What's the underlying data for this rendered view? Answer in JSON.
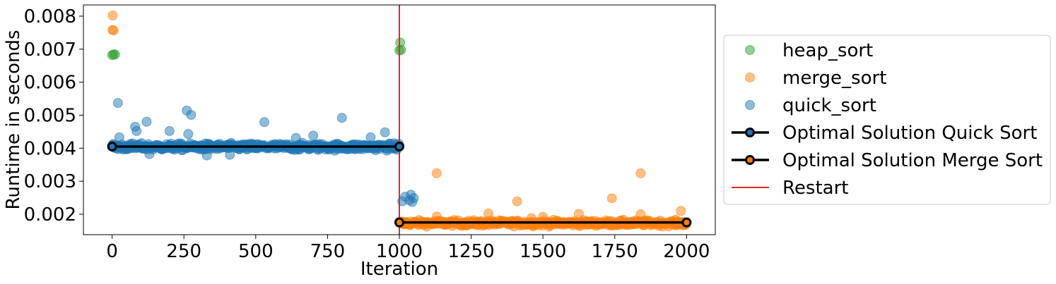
{
  "chart_data": {
    "type": "scatter",
    "title": "",
    "xlabel": "Iteration",
    "ylabel": "Runtime in seconds",
    "xlim": [
      -100,
      2100
    ],
    "ylim": [
      0.00138,
      0.00834
    ],
    "xticks": [
      0,
      250,
      500,
      750,
      1000,
      1250,
      1500,
      1750,
      2000
    ],
    "xtick_labels": [
      "0",
      "250",
      "500",
      "750",
      "1000",
      "1250",
      "1500",
      "1750",
      "2000"
    ],
    "yticks": [
      0.002,
      0.003,
      0.004,
      0.005,
      0.006,
      0.007,
      0.008
    ],
    "ytick_labels": [
      "0.002",
      "0.003",
      "0.004",
      "0.005",
      "0.006",
      "0.007",
      "0.008"
    ],
    "grid": false,
    "legend_position": "outside-right",
    "series": [
      {
        "name": "heap_sort",
        "kind": "scatter",
        "color": "#2ca02c",
        "points": [
          [
            0,
            0.00682
          ],
          [
            5,
            0.00684
          ],
          [
            10,
            0.00684
          ],
          [
            1000,
            0.00696
          ],
          [
            1003,
            0.0072
          ],
          [
            1006,
            0.00698
          ]
        ]
      },
      {
        "name": "merge_sort",
        "kind": "scatter",
        "color": "#ff7f0e",
        "points": [
          [
            2,
            0.00802
          ],
          [
            1,
            0.00758
          ],
          [
            5,
            0.00757
          ],
          [
            1130,
            0.00324
          ],
          [
            1410,
            0.00239
          ],
          [
            1740,
            0.00248
          ],
          [
            1840,
            0.00324
          ],
          [
            1310,
            0.00202
          ],
          [
            1625,
            0.00201
          ],
          [
            1980,
            0.0021
          ],
          [
            1840,
            0.002
          ],
          [
            1130,
            0.00193
          ],
          [
            1500,
            0.00192
          ],
          [
            1460,
            0.00188
          ]
        ],
        "band": {
          "x_start": 1000,
          "x_end": 2000,
          "y_center": 0.00173,
          "y_spread": 0.00014,
          "count": 420
        }
      },
      {
        "name": "quick_sort",
        "kind": "scatter",
        "color": "#1f77b4",
        "points": [
          [
            20,
            0.00537
          ],
          [
            120,
            0.0048
          ],
          [
            200,
            0.00452
          ],
          [
            260,
            0.00514
          ],
          [
            275,
            0.00501
          ],
          [
            530,
            0.00479
          ],
          [
            800,
            0.00492
          ],
          [
            950,
            0.00448
          ],
          [
            80,
            0.00465
          ],
          [
            85,
            0.00452
          ],
          [
            265,
            0.00443
          ],
          [
            640,
            0.00431
          ],
          [
            700,
            0.00438
          ],
          [
            900,
            0.00433
          ],
          [
            25,
            0.00433
          ],
          [
            330,
            0.00378
          ],
          [
            410,
            0.0038
          ],
          [
            130,
            0.00382
          ],
          [
            1020,
            0.00253
          ],
          [
            1040,
            0.00259
          ],
          [
            1050,
            0.00249
          ],
          [
            1035,
            0.00242
          ],
          [
            1010,
            0.00239
          ],
          [
            1045,
            0.00237
          ]
        ],
        "band": {
          "x_start": 0,
          "x_end": 1000,
          "y_center": 0.00404,
          "y_spread": 0.00017,
          "count": 460
        }
      },
      {
        "name": "Optimal Solution Quick Sort",
        "kind": "line",
        "color": "#000000",
        "marker_edge": "#000000",
        "marker_face": "#1f77b4",
        "points": [
          [
            0,
            0.00405
          ],
          [
            1000,
            0.00405
          ]
        ]
      },
      {
        "name": "Optimal Solution Merge Sort",
        "kind": "line",
        "color": "#000000",
        "marker_edge": "#000000",
        "marker_face": "#ff7f0e",
        "points": [
          [
            1000,
            0.00175
          ],
          [
            2000,
            0.00175
          ]
        ]
      },
      {
        "name": "Restart",
        "kind": "vline",
        "color": "#e3262e",
        "x": 1000
      }
    ]
  }
}
